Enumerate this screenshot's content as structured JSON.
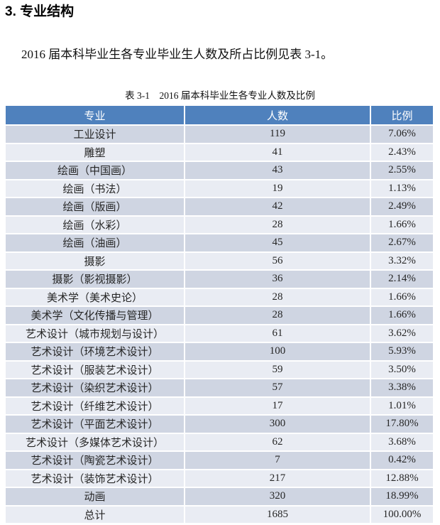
{
  "page": {
    "section_title": "3. 专业结构",
    "intro_text": "2016 届本科毕业生各专业毕业生人数及所占比例见表 3-1。",
    "table_caption": "表 3-1　2016 届本科毕业生各专业人数及比例"
  },
  "colors": {
    "header_bg": "#4f81bd",
    "row_band_dark": "#cfd5e2",
    "row_band_light": "#e9ecf3",
    "header_text": "#ffffff",
    "body_text": "#262626"
  },
  "chart_data": {
    "type": "table",
    "title": "表 3-1　2016 届本科毕业生各专业人数及比例",
    "columns": [
      "专业",
      "人数",
      "比例"
    ],
    "rows": [
      [
        "工业设计",
        "119",
        "7.06%"
      ],
      [
        "雕塑",
        "41",
        "2.43%"
      ],
      [
        "绘画（中国画）",
        "43",
        "2.55%"
      ],
      [
        "绘画（书法）",
        "19",
        "1.13%"
      ],
      [
        "绘画（版画）",
        "42",
        "2.49%"
      ],
      [
        "绘画（水彩）",
        "28",
        "1.66%"
      ],
      [
        "绘画（油画）",
        "45",
        "2.67%"
      ],
      [
        "摄影",
        "56",
        "3.32%"
      ],
      [
        "摄影（影视摄影）",
        "36",
        "2.14%"
      ],
      [
        "美术学（美术史论）",
        "28",
        "1.66%"
      ],
      [
        "美术学（文化传播与管理）",
        "28",
        "1.66%"
      ],
      [
        "艺术设计（城市规划与设计）",
        "61",
        "3.62%"
      ],
      [
        "艺术设计（环境艺术设计）",
        "100",
        "5.93%"
      ],
      [
        "艺术设计（服装艺术设计）",
        "59",
        "3.50%"
      ],
      [
        "艺术设计（染织艺术设计）",
        "57",
        "3.38%"
      ],
      [
        "艺术设计（纤维艺术设计）",
        "17",
        "1.01%"
      ],
      [
        "艺术设计（平面艺术设计）",
        "300",
        "17.80%"
      ],
      [
        "艺术设计（多媒体艺术设计）",
        "62",
        "3.68%"
      ],
      [
        "艺术设计（陶瓷艺术设计）",
        "7",
        "0.42%"
      ],
      [
        "艺术设计（装饰艺术设计）",
        "217",
        "12.88%"
      ],
      [
        "动画",
        "320",
        "18.99%"
      ],
      [
        "总计",
        "1685",
        "100.00%"
      ]
    ]
  }
}
